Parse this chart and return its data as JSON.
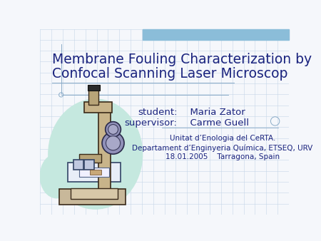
{
  "title_line1": "Membrane Fouling Characterization by",
  "title_line2": "Confocal Scanning Laser Microscop",
  "title_color": "#1a237e",
  "title_fontsize": 13.5,
  "student_label": "student:",
  "student_name": "  Maria Zator",
  "supervisor_label": "supervisor:",
  "supervisor_name": "  Carme Guell",
  "info_line1": "Unitat d’Enologia del CeRTA.",
  "info_line2": "Departament d’Enginyeria Química, ETSEQ, URV",
  "info_line3": "18.01.2005    Tarragona, Spain",
  "info_color": "#1a237e",
  "label_fontsize": 9.5,
  "info_fontsize": 7.5,
  "bg_color": "#f5f7fb",
  "grid_color": "#c5d5e8",
  "top_bar_color": "#8bbdd9",
  "slide_bg": "#f5f7fb"
}
